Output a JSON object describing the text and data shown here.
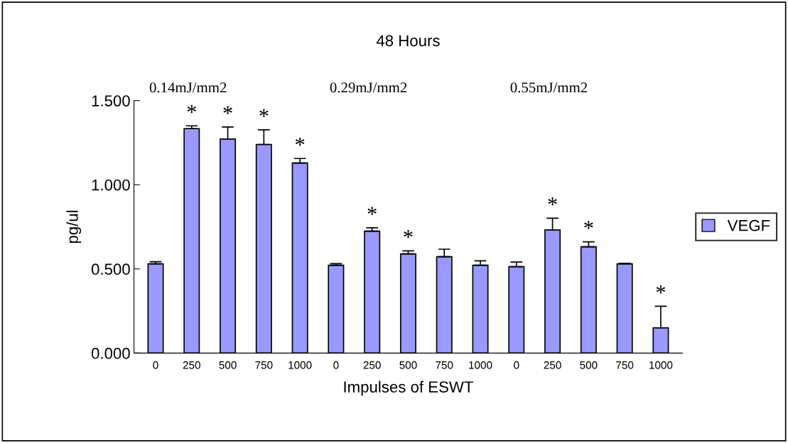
{
  "chart_data": {
    "type": "bar",
    "title": "48 Hours",
    "xlabel": "Impulses of ESWT",
    "ylabel": "pg/ul",
    "categories": [
      "0",
      "250",
      "500",
      "750",
      "1000",
      "0",
      "250",
      "500",
      "750",
      "1000",
      "0",
      "250",
      "500",
      "750",
      "1000"
    ],
    "series": [
      {
        "name": "VEGF",
        "color": "#9999ff",
        "values": [
          0.53,
          1.333,
          1.272,
          1.239,
          1.129,
          0.522,
          0.724,
          0.589,
          0.572,
          0.522,
          0.513,
          0.732,
          0.631,
          0.53,
          0.15
        ],
        "errors": [
          [
            0.53,
            0.543
          ],
          [
            1.333,
            1.35
          ],
          [
            1.272,
            1.343
          ],
          [
            1.239,
            1.326
          ],
          [
            1.129,
            1.156
          ],
          [
            0.522,
            0.531
          ],
          [
            0.724,
            0.744
          ],
          [
            0.589,
            0.607
          ],
          [
            0.572,
            0.617
          ],
          [
            0.522,
            0.548
          ],
          [
            0.513,
            0.541
          ],
          [
            0.732,
            0.801
          ],
          [
            0.631,
            0.661
          ],
          [
            0.53,
            0.532
          ],
          [
            0.15,
            0.278
          ]
        ],
        "value_labels": [
          null,
          "*",
          "*",
          "*",
          "*",
          null,
          "*",
          "*",
          null,
          null,
          null,
          "*",
          "*",
          null,
          "*"
        ]
      }
    ],
    "annotations": [
      "0.14mJ/mm2",
      "0.29mJ/mm2",
      "0.55mJ/mm2"
    ],
    "ylim": [
      0,
      1.5
    ],
    "yticks": [
      {
        "value": 0,
        "label": "0.000"
      },
      {
        "value": 0.5,
        "label": "0.500"
      },
      {
        "value": 1.0,
        "label": "1.000"
      },
      {
        "value": 1.5,
        "label": "1.500"
      }
    ],
    "grid": false,
    "legend": "right"
  }
}
